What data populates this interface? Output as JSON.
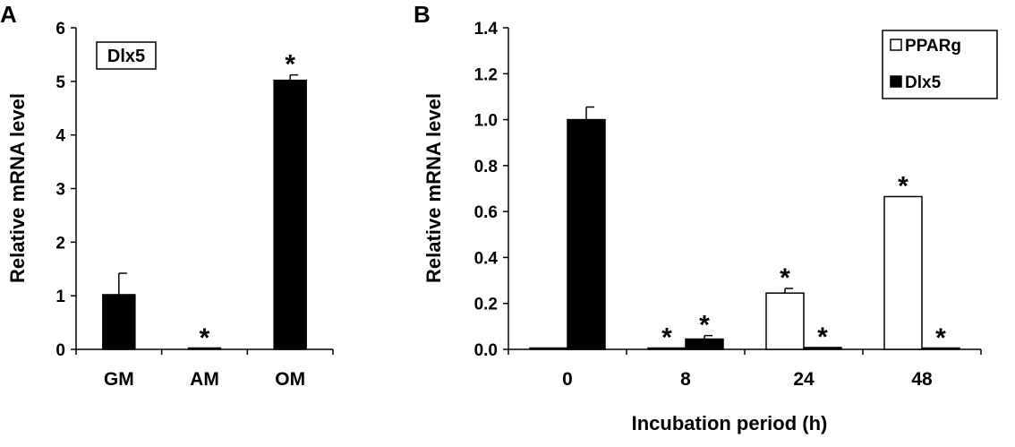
{
  "chart_data": [
    {
      "panel": "A",
      "type": "bar",
      "title": "",
      "xlabel": "",
      "ylabel": "Relative mRNA level",
      "inset_label": "Dlx5",
      "categories": [
        "GM",
        "AM",
        "OM"
      ],
      "ylim": [
        0,
        6
      ],
      "yticks": [
        "0",
        "1",
        "2",
        "3",
        "4",
        "5",
        "6"
      ],
      "series": [
        {
          "name": "",
          "color": "#000000",
          "values": [
            1.02,
            0.02,
            5.02
          ],
          "errors": [
            0.4,
            0.0,
            0.1
          ],
          "significant": [
            false,
            true,
            true
          ]
        }
      ],
      "significance_marker": "*",
      "grid": false,
      "legend": "none"
    },
    {
      "panel": "B",
      "type": "bar",
      "title": "",
      "xlabel": "Incubation period (h)",
      "ylabel": "Relative mRNA level",
      "categories": [
        "0",
        "8",
        "24",
        "48"
      ],
      "ylim": [
        0,
        1.4
      ],
      "yticks": [
        "0.0",
        "0.2",
        "0.4",
        "0.6",
        "0.8",
        "1.0",
        "1.2",
        "1.4"
      ],
      "series": [
        {
          "name": "PPARg",
          "color": "#ffffff",
          "values": [
            0.005,
            0.005,
            0.245,
            0.665
          ],
          "errors": [
            0.0,
            0.0,
            0.02,
            0.0
          ],
          "significant": [
            false,
            true,
            true,
            true
          ]
        },
        {
          "name": "Dlx5",
          "color": "#000000",
          "values": [
            1.0,
            0.045,
            0.008,
            0.004
          ],
          "errors": [
            0.055,
            0.015,
            0.0,
            0.0
          ],
          "significant": [
            false,
            true,
            true,
            true
          ]
        }
      ],
      "significance_marker": "*",
      "grid": false,
      "legend": "top-right"
    }
  ]
}
